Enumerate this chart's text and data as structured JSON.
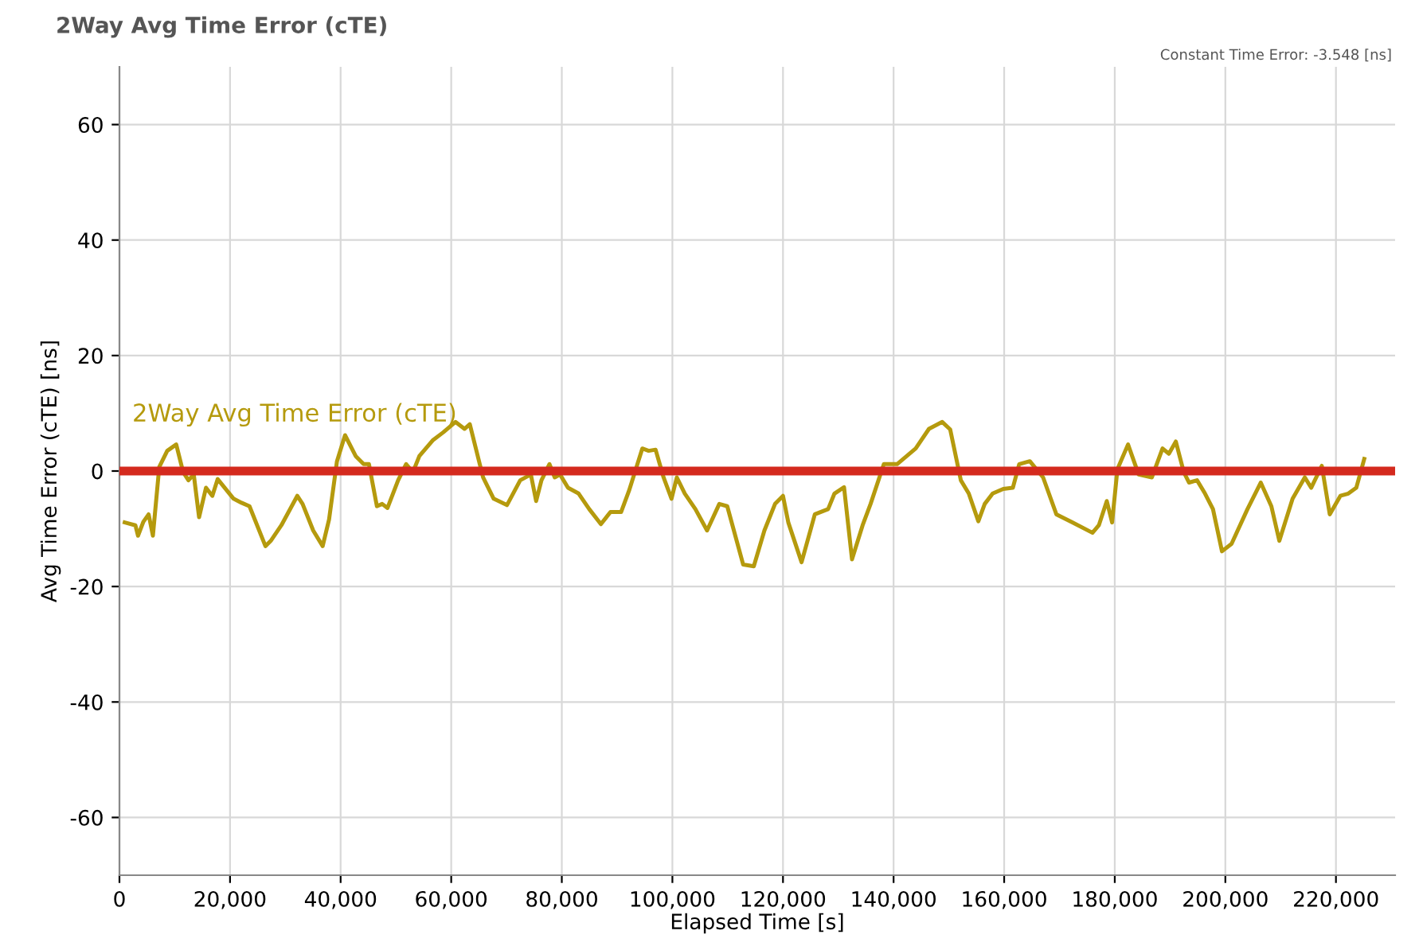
{
  "chart_data": {
    "type": "line",
    "title": "2Way Avg Time Error (cTE)",
    "xlabel": "Elapsed Time [s]",
    "ylabel": "Avg Time Error (cTE) [ns]",
    "annotations": [
      "Constant Time Error: -3.548 [ns]"
    ],
    "xlim": [
      0,
      230700
    ],
    "ylim": [
      -70,
      70
    ],
    "xticks": [
      {
        "value": 0,
        "label": "0"
      },
      {
        "value": 20000,
        "label": "20,000"
      },
      {
        "value": 40000,
        "label": "40,000"
      },
      {
        "value": 60000,
        "label": "60,000"
      },
      {
        "value": 80000,
        "label": "80,000"
      },
      {
        "value": 100000,
        "label": "100,000"
      },
      {
        "value": 120000,
        "label": "120,000"
      },
      {
        "value": 140000,
        "label": "140,000"
      },
      {
        "value": 160000,
        "label": "160,000"
      },
      {
        "value": 180000,
        "label": "180,000"
      },
      {
        "value": 200000,
        "label": "200,000"
      },
      {
        "value": 220000,
        "label": "220,000"
      }
    ],
    "yticks": [
      -60,
      -40,
      -20,
      0,
      20,
      40,
      60
    ],
    "grid": true,
    "ref_lines": [
      {
        "axis": "y",
        "value": 0,
        "color": "#d42a1e"
      }
    ],
    "series": [
      {
        "name": "2Way Avg Time Error (cTE)",
        "color": "#b59a0d",
        "x": [
          950,
          2880,
          3360,
          4320,
          5280,
          6050,
          7200,
          8640,
          10270,
          11520,
          12480,
          13440,
          14400,
          15650,
          16800,
          17760,
          20640,
          22080,
          23520,
          26400,
          27360,
          29280,
          32160,
          33120,
          35040,
          36750,
          37910,
          39340,
          40800,
          42720,
          44160,
          45120,
          46560,
          47520,
          48480,
          50400,
          51840,
          53070,
          54240,
          56640,
          58560,
          60760,
          62400,
          63360,
          65760,
          67680,
          70080,
          72480,
          74400,
          75360,
          76320,
          77760,
          78720,
          79680,
          81120,
          83040,
          84960,
          87070,
          88800,
          90720,
          92160,
          94560,
          95710,
          96960,
          98400,
          99840,
          100800,
          102240,
          104160,
          106270,
          108480,
          109920,
          112800,
          114720,
          116640,
          118560,
          120000,
          120960,
          123360,
          125760,
          128160,
          129310,
          131040,
          132480,
          134400,
          135840,
          138240,
          140640,
          144000,
          146400,
          148800,
          150240,
          152160,
          153600,
          155330,
          156480,
          157920,
          159840,
          161570,
          162720,
          164640,
          167040,
          169440,
          172320,
          175970,
          177120,
          178560,
          179520,
          180480,
          182400,
          184320,
          186720,
          188640,
          189790,
          191040,
          192480,
          193440,
          194880,
          196320,
          197760,
          199390,
          201120,
          204000,
          206400,
          208320,
          209760,
          212160,
          214370,
          215520,
          217440,
          218880,
          220800,
          222240,
          223680,
          225120
        ],
        "values": [
          -8.9,
          -9.4,
          -11.2,
          -8.8,
          -7.5,
          -11.2,
          0.7,
          3.5,
          4.6,
          -0.2,
          -1.6,
          -0.6,
          -8.0,
          -2.9,
          -4.3,
          -1.4,
          -4.8,
          -5.5,
          -6.1,
          -13.0,
          -12.1,
          -9.4,
          -4.3,
          -5.7,
          -10.3,
          -13.0,
          -8.4,
          1.7,
          6.2,
          2.6,
          1.2,
          1.2,
          -6.1,
          -5.7,
          -6.4,
          -1.6,
          1.2,
          -0.2,
          2.6,
          5.3,
          6.7,
          8.5,
          7.3,
          8.1,
          -1.1,
          -4.8,
          -5.9,
          -1.6,
          -0.6,
          -5.2,
          -1.6,
          1.2,
          -1.1,
          -0.6,
          -2.9,
          -3.9,
          -6.6,
          -9.2,
          -7.1,
          -7.1,
          -3.4,
          3.9,
          3.5,
          3.7,
          -1.1,
          -4.8,
          -1.1,
          -3.9,
          -6.6,
          -10.3,
          -5.7,
          -6.1,
          -16.2,
          -16.5,
          -10.3,
          -5.7,
          -4.3,
          -8.9,
          -15.8,
          -7.5,
          -6.6,
          -3.9,
          -2.8,
          -15.3,
          -9.4,
          -5.7,
          1.2,
          1.2,
          3.9,
          7.3,
          8.5,
          7.2,
          -1.6,
          -3.9,
          -8.7,
          -5.7,
          -3.9,
          -3.1,
          -2.9,
          1.2,
          1.7,
          -1.1,
          -7.5,
          -8.9,
          -10.7,
          -9.4,
          -5.2,
          -8.9,
          0.3,
          4.6,
          -0.6,
          -1.1,
          3.9,
          3.0,
          5.1,
          -0.2,
          -2.0,
          -1.6,
          -3.9,
          -6.6,
          -13.9,
          -12.6,
          -6.6,
          -2.0,
          -6.1,
          -12.1,
          -4.8,
          -1.1,
          -2.9,
          0.9,
          -7.5,
          -4.3,
          -3.9,
          -2.9,
          2.1
        ]
      }
    ]
  }
}
